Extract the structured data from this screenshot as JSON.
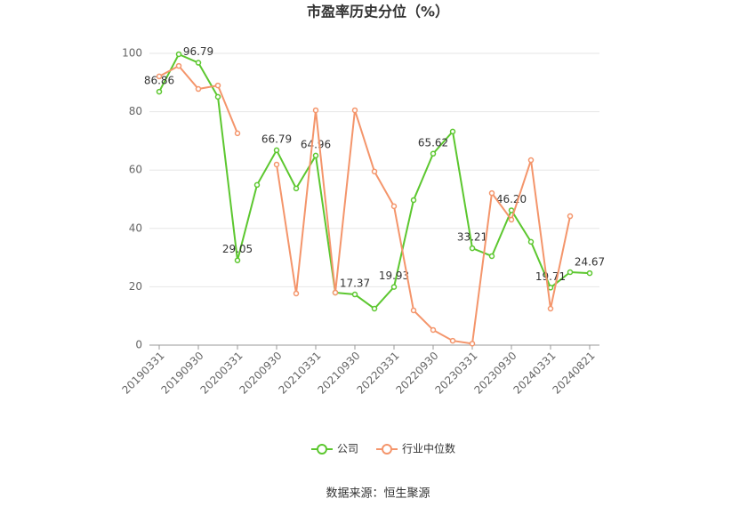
{
  "chart_data": {
    "type": "line",
    "title": "市盈率历史分位（%）",
    "source": "数据来源：恒生聚源",
    "categories": [
      "20190331",
      null,
      "20190930",
      null,
      "20200331",
      null,
      "20200930",
      null,
      "20210331",
      null,
      "20210930",
      null,
      "20220331",
      null,
      "20220930",
      null,
      "20230331",
      null,
      "20230930",
      null,
      "20240331",
      null,
      "20240821"
    ],
    "series": [
      {
        "name": "公司",
        "color": "#5cc72f",
        "values": [
          86.86,
          99.7,
          96.79,
          85.1,
          29.05,
          54.9,
          66.79,
          53.7,
          64.96,
          18.0,
          17.37,
          12.5,
          19.93,
          49.7,
          65.62,
          73.2,
          33.21,
          30.5,
          46.2,
          35.4,
          19.71,
          25.0,
          24.67
        ],
        "value_labels": [
          "86.86",
          null,
          "96.79",
          null,
          "29.05",
          null,
          "66.79",
          null,
          "64.96",
          null,
          "17.37",
          null,
          "19.93",
          null,
          "65.62",
          null,
          "33.21",
          null,
          "46.20",
          null,
          "19.71",
          null,
          "24.67"
        ]
      },
      {
        "name": "行业中位数",
        "color": "#f4956b",
        "values": [
          92.1,
          95.7,
          87.8,
          89.0,
          72.6,
          null,
          61.9,
          17.7,
          80.5,
          18.0,
          80.5,
          59.5,
          47.6,
          11.9,
          5.2,
          1.5,
          0.5,
          52.1,
          43.0,
          63.4,
          12.5,
          44.2,
          null
        ]
      }
    ],
    "ylim": [
      0,
      100
    ],
    "yticks": [
      0,
      20,
      40,
      60,
      80,
      100
    ],
    "grid": true,
    "legend": "bottom"
  }
}
